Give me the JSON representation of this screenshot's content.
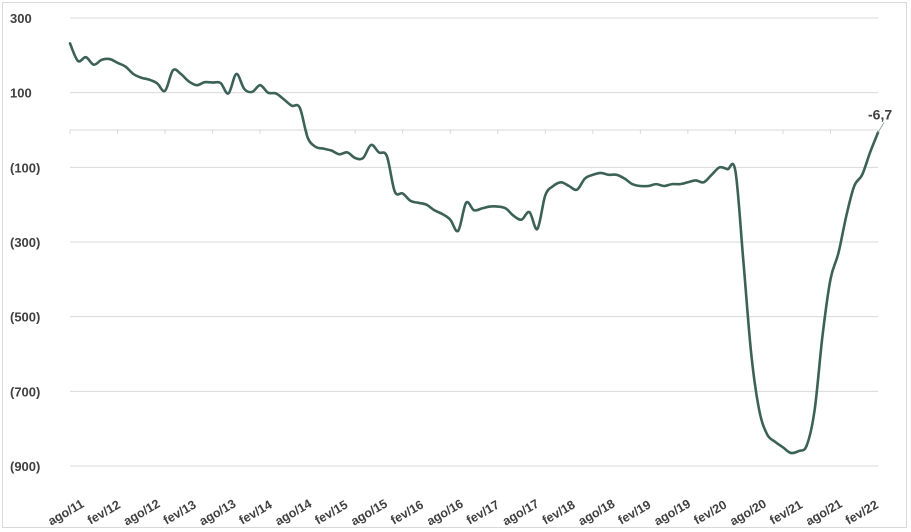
{
  "chart_data": {
    "type": "line",
    "title": "",
    "xlabel": "",
    "ylabel": "",
    "ylim": [
      -900,
      300
    ],
    "yticks": [
      300,
      100,
      -100,
      -300,
      -500,
      -700,
      -900
    ],
    "ytick_labels": [
      "300",
      "100",
      "(100)",
      "(300)",
      "(500)",
      "(700)",
      "(900)"
    ],
    "xtick_labels": [
      "ago/11",
      "fev/12",
      "ago/12",
      "fev/13",
      "ago/13",
      "fev/14",
      "ago/14",
      "fev/15",
      "ago/15",
      "fev/16",
      "ago/16",
      "fev/17",
      "ago/17",
      "fev/18",
      "ago/18",
      "fev/19",
      "ago/19",
      "fev/20",
      "ago/20",
      "fev/21",
      "ago/21",
      "fev/22"
    ],
    "grid": true,
    "legend": "none",
    "color": "#3c6157",
    "series": [
      {
        "values": [
          232,
          185,
          195,
          175,
          188,
          190,
          180,
          170,
          150,
          140,
          135,
          125,
          105,
          160,
          150,
          130,
          120,
          128,
          127,
          126,
          98,
          150,
          110,
          102,
          120,
          100,
          98,
          82,
          65,
          60,
          -20,
          -45,
          -50,
          -55,
          -65,
          -60,
          -75,
          -75,
          -40,
          -60,
          -70,
          -165,
          -170,
          -190,
          -195,
          -200,
          -215,
          -225,
          -240,
          -270,
          -195,
          -215,
          -210,
          -205,
          -205,
          -210,
          -230,
          -240,
          -220,
          -265,
          -175,
          -150,
          -140,
          -150,
          -160,
          -130,
          -120,
          -115,
          -120,
          -120,
          -130,
          -145,
          -150,
          -150,
          -145,
          -150,
          -145,
          -145,
          -140,
          -135,
          -140,
          -120,
          -100,
          -105,
          -110,
          -350,
          -600,
          -750,
          -815,
          -835,
          -850,
          -865,
          -860,
          -845,
          -750,
          -550,
          -400,
          -330,
          -230,
          -150,
          -120,
          -60,
          -6.7
        ]
      }
    ],
    "annotations": [
      {
        "text": "-6,7",
        "value": -6.7,
        "point_index": 102
      }
    ]
  }
}
